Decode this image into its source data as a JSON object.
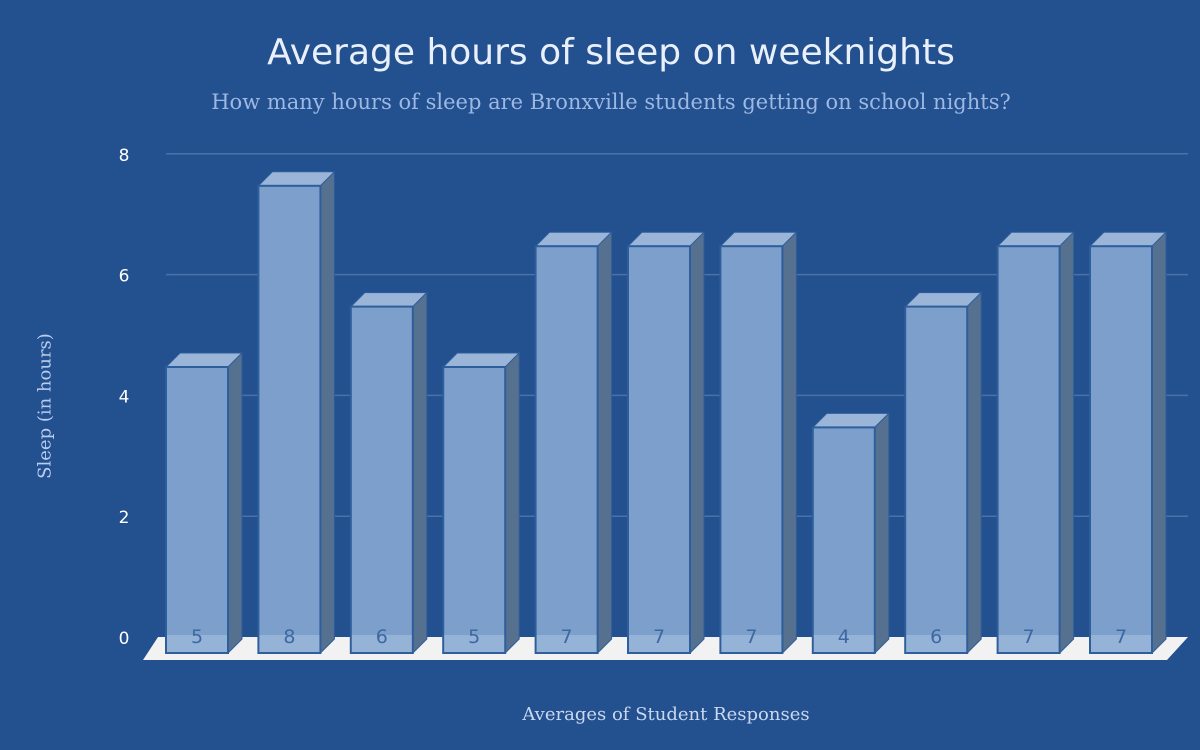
{
  "chart_data": {
    "type": "bar",
    "title": "Average hours of sleep on weeknights",
    "subtitle": "How many hours of sleep are Bronxville students getting on school nights?",
    "xlabel": "Averages of Student Responses",
    "ylabel": "Sleep (in hours)",
    "ylim": [
      0,
      8
    ],
    "yticks": [
      0,
      2,
      4,
      6,
      8
    ],
    "categories": [
      "",
      "",
      "",
      "",
      "",
      "",
      "",
      "",
      "",
      "",
      ""
    ],
    "values": [
      5,
      8,
      6,
      5,
      7,
      7,
      7,
      4,
      6,
      7,
      7
    ],
    "data_labels": [
      "5",
      "8",
      "6",
      "5",
      "7",
      "7",
      "7",
      "4",
      "6",
      "7",
      "7"
    ],
    "grid": true,
    "legend": "none",
    "colors": {
      "background": "#23508f",
      "bar_front": "#7d9fcb",
      "bar_side": "#56708f",
      "bar_top": "#9bb5d8",
      "bar_edge": "#2e5e9c",
      "grid": "#4a72a8",
      "floor": "#f2f2f2",
      "data_label": "#3c68a3"
    }
  }
}
